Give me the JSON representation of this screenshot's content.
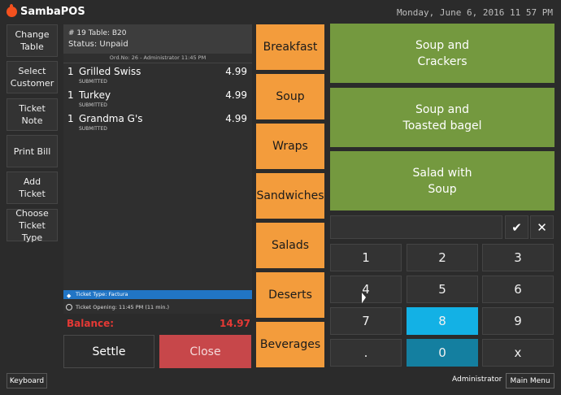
{
  "app": {
    "name": "SambaPOS",
    "datetime": "Monday, June 6, 2016 11 57 PM"
  },
  "left_actions": [
    {
      "label": "Change\nTable"
    },
    {
      "label": "Select\nCustomer"
    },
    {
      "label": "Ticket\nNote"
    },
    {
      "label": "Print Bill"
    },
    {
      "label": "Add\nTicket"
    },
    {
      "label": "Choose\nTicket Type"
    }
  ],
  "ticket": {
    "header": "# 19 Table: B20",
    "status": "Status: Unpaid",
    "order_line": "Ord.No: 26 - Administrator 11:45 PM",
    "items": [
      {
        "qty": "1",
        "name": "Grilled Swiss",
        "price": "4.99",
        "state": "SUBMITTED"
      },
      {
        "qty": "1",
        "name": "Turkey",
        "price": "4.99",
        "state": "SUBMITTED"
      },
      {
        "qty": "1",
        "name": "Grandma G's",
        "price": "4.99",
        "state": "SUBMITTED"
      }
    ],
    "ticket_type": "Ticket Type: Factura",
    "ticket_opening": "Ticket Opening:   11:45 PM (11 min.)",
    "balance_label": "Balance:",
    "balance_value": "14.97"
  },
  "actions": {
    "settle": "Settle",
    "close": "Close"
  },
  "categories": [
    "Breakfast",
    "Soup",
    "Wraps",
    "Sandwiches",
    "Salads",
    "Deserts",
    "Beverages"
  ],
  "products": [
    "Soup and\nCrackers",
    "Soup and\nToasted bagel",
    "Salad with\nSoup"
  ],
  "numpad": {
    "confirm_icon": "check-icon",
    "clear_icon": "x-icon",
    "keys": [
      "1",
      "2",
      "3",
      "4",
      "5",
      "6",
      "7",
      "8",
      "9",
      ".",
      "0",
      "x"
    ]
  },
  "footer": {
    "keyboard": "Keyboard",
    "user": "Administrator",
    "main_menu": "Main Menu"
  },
  "colors": {
    "category": "#f39c3c",
    "product": "#74993f",
    "close": "#c7474a",
    "balance": "#e53935",
    "key_active": "#13b1e5",
    "key_zero": "#147fa0",
    "ticket_type": "#2175c5"
  }
}
